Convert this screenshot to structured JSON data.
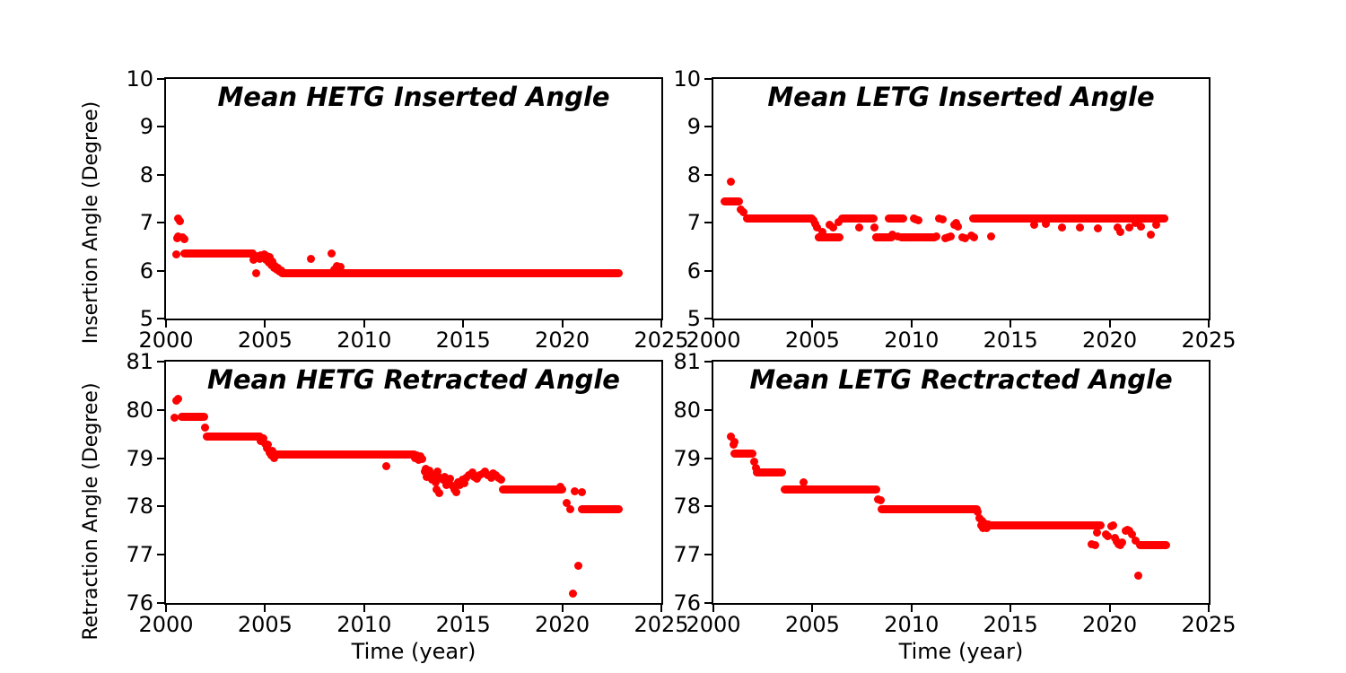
{
  "figure": {
    "background": "#ffffff",
    "axis_color": "#000000",
    "marker_color": "#ff0000"
  },
  "chart_data": [
    {
      "type": "scatter",
      "title": "Mean HETG Inserted Angle",
      "xlabel": "",
      "ylabel": "Insertion Angle (Degree)",
      "xlim": [
        2000,
        2025
      ],
      "ylim": [
        5,
        10
      ],
      "xticks": [
        2000,
        2005,
        2010,
        2015,
        2020,
        2025
      ],
      "yticks": [
        5,
        6,
        7,
        8,
        9,
        10
      ],
      "grid": false,
      "legend": "none",
      "marker": {
        "color": "#ff0000",
        "size": 9
      },
      "bands": [
        {
          "x0": 2000.95,
          "x1": 2004.4,
          "y": 6.35
        },
        {
          "x0": 2005.85,
          "x1": 2022.85,
          "y": 5.95
        }
      ],
      "points": [
        [
          2000.5,
          6.33
        ],
        [
          2000.55,
          6.68
        ],
        [
          2000.62,
          6.72
        ],
        [
          2000.6,
          7.08
        ],
        [
          2000.68,
          7.04
        ],
        [
          2000.85,
          6.7
        ],
        [
          2000.92,
          6.66
        ],
        [
          2004.4,
          6.22
        ],
        [
          2004.48,
          6.27
        ],
        [
          2004.55,
          5.95
        ],
        [
          2004.65,
          6.3
        ],
        [
          2004.72,
          6.25
        ],
        [
          2004.8,
          6.32
        ],
        [
          2004.9,
          6.28
        ],
        [
          2004.98,
          6.33
        ],
        [
          2005.05,
          6.22
        ],
        [
          2005.1,
          6.3
        ],
        [
          2005.18,
          6.17
        ],
        [
          2005.25,
          6.28
        ],
        [
          2005.32,
          6.12
        ],
        [
          2005.38,
          6.18
        ],
        [
          2005.45,
          6.05
        ],
        [
          2005.52,
          6.1
        ],
        [
          2005.58,
          6.02
        ],
        [
          2005.65,
          6.06
        ],
        [
          2005.72,
          5.98
        ],
        [
          2005.8,
          6.0
        ],
        [
          2007.3,
          6.25
        ],
        [
          2008.35,
          6.35
        ],
        [
          2008.5,
          6.02
        ],
        [
          2008.65,
          6.1
        ],
        [
          2008.8,
          6.07
        ]
      ]
    },
    {
      "type": "scatter",
      "title": "Mean LETG Inserted Angle",
      "xlabel": "",
      "ylabel": "Insertion Angle (Degree)",
      "xlim": [
        2000,
        2025
      ],
      "ylim": [
        5,
        10
      ],
      "xticks": [
        2000,
        2005,
        2010,
        2015,
        2020,
        2025
      ],
      "yticks": [
        5,
        6,
        7,
        8,
        9,
        10
      ],
      "grid": false,
      "legend": "none",
      "marker": {
        "color": "#ff0000",
        "size": 9
      },
      "bands": [
        {
          "x0": 2000.55,
          "x1": 2001.3,
          "y": 7.45
        },
        {
          "x0": 2001.7,
          "x1": 2005.0,
          "y": 7.08
        },
        {
          "x0": 2005.3,
          "x1": 2006.4,
          "y": 6.7
        },
        {
          "x0": 2006.5,
          "x1": 2008.1,
          "y": 7.08
        },
        {
          "x0": 2008.2,
          "x1": 2009.0,
          "y": 6.7
        },
        {
          "x0": 2008.85,
          "x1": 2009.6,
          "y": 7.08
        },
        {
          "x0": 2009.5,
          "x1": 2010.45,
          "y": 6.7
        },
        {
          "x0": 2010.55,
          "x1": 2011.15,
          "y": 6.7
        },
        {
          "x0": 2013.1,
          "x1": 2022.8,
          "y": 7.08
        }
      ],
      "points": [
        [
          2000.9,
          7.85
        ],
        [
          2001.4,
          7.28
        ],
        [
          2001.5,
          7.22
        ],
        [
          2005.05,
          7.05
        ],
        [
          2005.15,
          6.98
        ],
        [
          2005.25,
          6.9
        ],
        [
          2005.5,
          6.8
        ],
        [
          2005.85,
          6.95
        ],
        [
          2006.05,
          6.9
        ],
        [
          2006.3,
          7.02
        ],
        [
          2007.35,
          6.9
        ],
        [
          2008.15,
          6.9
        ],
        [
          2009.05,
          6.75
        ],
        [
          2009.3,
          6.72
        ],
        [
          2010.1,
          7.08
        ],
        [
          2010.2,
          7.07
        ],
        [
          2010.35,
          7.05
        ],
        [
          2011.25,
          6.72
        ],
        [
          2011.4,
          7.08
        ],
        [
          2011.55,
          7.07
        ],
        [
          2011.7,
          6.68
        ],
        [
          2011.85,
          6.7
        ],
        [
          2012.0,
          6.72
        ],
        [
          2012.15,
          6.95
        ],
        [
          2012.25,
          7.0
        ],
        [
          2012.35,
          6.92
        ],
        [
          2012.55,
          6.7
        ],
        [
          2012.7,
          6.68
        ],
        [
          2013.0,
          6.73
        ],
        [
          2013.15,
          6.7
        ],
        [
          2014.0,
          6.72
        ],
        [
          2016.2,
          6.95
        ],
        [
          2016.8,
          6.98
        ],
        [
          2017.6,
          6.9
        ],
        [
          2018.5,
          6.9
        ],
        [
          2019.4,
          6.88
        ],
        [
          2020.4,
          6.9
        ],
        [
          2020.55,
          6.8
        ],
        [
          2021.0,
          6.9
        ],
        [
          2021.3,
          7.0
        ],
        [
          2021.6,
          6.92
        ],
        [
          2022.1,
          6.75
        ],
        [
          2022.35,
          6.95
        ]
      ]
    },
    {
      "type": "scatter",
      "title": "Mean HETG Retracted Angle",
      "xlabel": "Time (year)",
      "ylabel": "Retraction Angle (Degree)",
      "xlim": [
        2000,
        2025
      ],
      "ylim": [
        76,
        81
      ],
      "xticks": [
        2000,
        2005,
        2010,
        2015,
        2020,
        2025
      ],
      "yticks": [
        76,
        77,
        78,
        79,
        80,
        81
      ],
      "grid": false,
      "legend": "none",
      "marker": {
        "color": "#ff0000",
        "size": 9
      },
      "bands": [
        {
          "x0": 2000.8,
          "x1": 2001.95,
          "y": 79.85
        },
        {
          "x0": 2002.05,
          "x1": 2004.75,
          "y": 79.45
        },
        {
          "x0": 2005.5,
          "x1": 2012.5,
          "y": 79.08
        },
        {
          "x0": 2017.0,
          "x1": 2020.03,
          "y": 78.35
        },
        {
          "x0": 2021.0,
          "x1": 2022.85,
          "y": 77.95
        }
      ],
      "points": [
        [
          2000.5,
          80.2
        ],
        [
          2000.6,
          80.23
        ],
        [
          2000.45,
          79.83
        ],
        [
          2001.95,
          79.64
        ],
        [
          2004.8,
          79.36
        ],
        [
          2004.9,
          79.42
        ],
        [
          2005.0,
          79.3
        ],
        [
          2005.08,
          79.2
        ],
        [
          2005.15,
          79.28
        ],
        [
          2005.25,
          79.12
        ],
        [
          2005.3,
          79.05
        ],
        [
          2005.38,
          79.15
        ],
        [
          2005.45,
          79.0
        ],
        [
          2011.1,
          78.83
        ],
        [
          2012.55,
          79.0
        ],
        [
          2012.65,
          79.05
        ],
        [
          2012.75,
          78.97
        ],
        [
          2012.85,
          79.03
        ],
        [
          2012.95,
          78.98
        ],
        [
          2013.05,
          78.72
        ],
        [
          2013.1,
          78.78
        ],
        [
          2013.15,
          78.62
        ],
        [
          2013.25,
          78.68
        ],
        [
          2013.3,
          78.75
        ],
        [
          2013.38,
          78.6
        ],
        [
          2013.45,
          78.55
        ],
        [
          2013.55,
          78.65
        ],
        [
          2013.62,
          78.5
        ],
        [
          2013.65,
          78.35
        ],
        [
          2013.7,
          78.72
        ],
        [
          2013.78,
          78.28
        ],
        [
          2013.85,
          78.6
        ],
        [
          2013.95,
          78.55
        ],
        [
          2014.05,
          78.62
        ],
        [
          2014.15,
          78.45
        ],
        [
          2014.25,
          78.52
        ],
        [
          2014.35,
          78.58
        ],
        [
          2014.45,
          78.42
        ],
        [
          2014.55,
          78.35
        ],
        [
          2014.65,
          78.3
        ],
        [
          2014.75,
          78.5
        ],
        [
          2014.85,
          78.45
        ],
        [
          2014.95,
          78.55
        ],
        [
          2015.05,
          78.48
        ],
        [
          2015.15,
          78.6
        ],
        [
          2015.3,
          78.65
        ],
        [
          2015.45,
          78.7
        ],
        [
          2015.55,
          78.62
        ],
        [
          2015.7,
          78.58
        ],
        [
          2015.85,
          78.65
        ],
        [
          2016.0,
          78.68
        ],
        [
          2016.1,
          78.72
        ],
        [
          2016.25,
          78.65
        ],
        [
          2016.4,
          78.6
        ],
        [
          2016.5,
          78.68
        ],
        [
          2016.65,
          78.65
        ],
        [
          2016.8,
          78.6
        ],
        [
          2016.9,
          78.55
        ],
        [
          2019.9,
          78.4
        ],
        [
          2020.2,
          78.08
        ],
        [
          2020.4,
          77.95
        ],
        [
          2020.55,
          76.2
        ],
        [
          2020.8,
          76.77
        ],
        [
          2020.65,
          78.32
        ],
        [
          2021.0,
          78.3
        ]
      ]
    },
    {
      "type": "scatter",
      "title": "Mean LETG Rectracted Angle",
      "xlabel": "Time (year)",
      "ylabel": "Retraction Angle (Degree)",
      "xlim": [
        2000,
        2025
      ],
      "ylim": [
        76,
        81
      ],
      "xticks": [
        2000,
        2005,
        2010,
        2015,
        2020,
        2025
      ],
      "yticks": [
        76,
        77,
        78,
        79,
        80,
        81
      ],
      "grid": false,
      "legend": "none",
      "marker": {
        "color": "#ff0000",
        "size": 9
      },
      "bands": [
        {
          "x0": 2001.05,
          "x1": 2002.0,
          "y": 79.1
        },
        {
          "x0": 2002.2,
          "x1": 2003.5,
          "y": 78.7
        },
        {
          "x0": 2003.6,
          "x1": 2008.2,
          "y": 78.35
        },
        {
          "x0": 2008.5,
          "x1": 2013.3,
          "y": 77.95
        },
        {
          "x0": 2014.0,
          "x1": 2019.55,
          "y": 77.6
        },
        {
          "x0": 2021.55,
          "x1": 2022.85,
          "y": 77.2
        }
      ],
      "points": [
        [
          2000.9,
          79.45
        ],
        [
          2001.0,
          79.28
        ],
        [
          2001.05,
          79.33
        ],
        [
          2002.05,
          78.92
        ],
        [
          2002.15,
          78.8
        ],
        [
          2004.55,
          78.5
        ],
        [
          2008.3,
          78.15
        ],
        [
          2008.45,
          78.13
        ],
        [
          2013.35,
          77.88
        ],
        [
          2013.45,
          77.75
        ],
        [
          2013.5,
          77.6
        ],
        [
          2013.55,
          77.7
        ],
        [
          2013.62,
          77.55
        ],
        [
          2013.7,
          77.65
        ],
        [
          2013.8,
          77.55
        ],
        [
          2013.9,
          77.62
        ],
        [
          2019.1,
          77.22
        ],
        [
          2019.25,
          77.2
        ],
        [
          2019.35,
          77.45
        ],
        [
          2019.8,
          77.42
        ],
        [
          2019.9,
          77.38
        ],
        [
          2020.1,
          77.58
        ],
        [
          2020.18,
          77.6
        ],
        [
          2020.25,
          77.35
        ],
        [
          2020.35,
          77.28
        ],
        [
          2020.45,
          77.22
        ],
        [
          2020.55,
          77.2
        ],
        [
          2020.65,
          77.25
        ],
        [
          2020.8,
          77.5
        ],
        [
          2020.9,
          77.52
        ],
        [
          2021.0,
          77.5
        ],
        [
          2021.15,
          77.42
        ],
        [
          2021.3,
          77.3
        ],
        [
          2021.45,
          76.57
        ]
      ]
    }
  ]
}
